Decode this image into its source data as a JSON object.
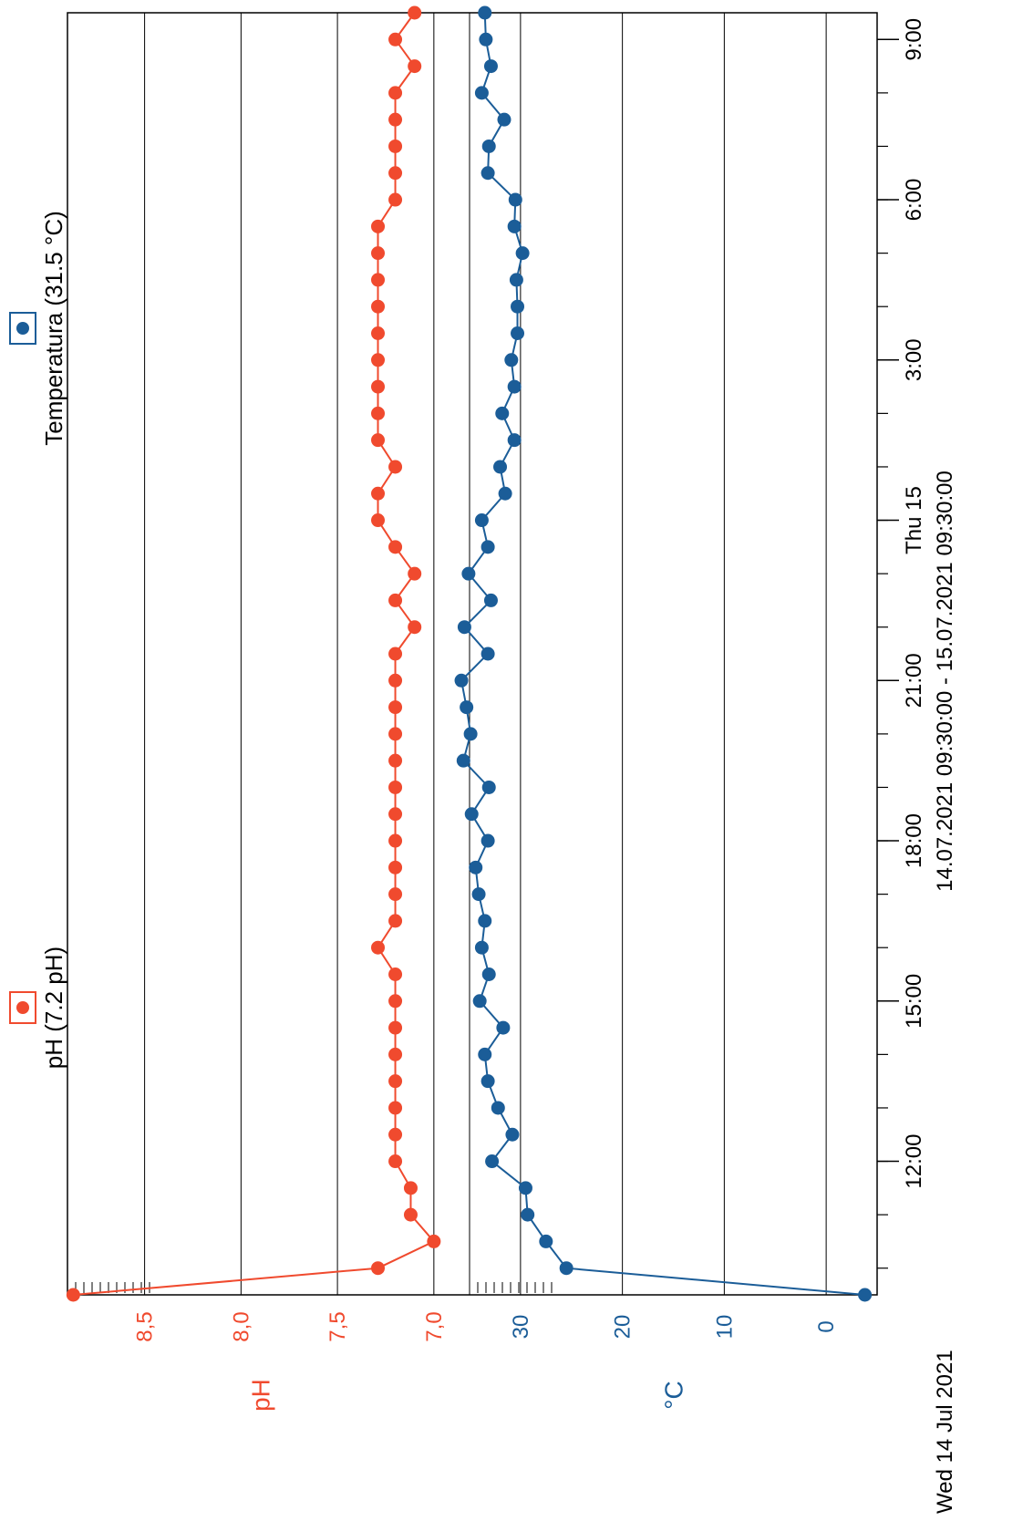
{
  "chart_data": {
    "type": "line",
    "orientation": "rotated 90 degrees counter-clockwise (time axis runs bottom-to-top on the page)",
    "x_axis": {
      "kind": "time",
      "range": [
        "2021-07-14 09:30",
        "2021-07-15 09:30"
      ],
      "major_ticks": [
        {
          "time": "2021-07-14 12:00",
          "label": "12:00"
        },
        {
          "time": "2021-07-14 15:00",
          "label": "15:00"
        },
        {
          "time": "2021-07-14 18:00",
          "label": "18:00"
        },
        {
          "time": "2021-07-14 21:00",
          "label": "21:00"
        },
        {
          "time": "2021-07-15 00:00",
          "label": "Thu 15"
        },
        {
          "time": "2021-07-15 03:00",
          "label": "3:00"
        },
        {
          "time": "2021-07-15 06:00",
          "label": "6:00"
        },
        {
          "time": "2021-07-15 09:00",
          "label": "9:00"
        }
      ],
      "minor_tick_interval": "1 hour",
      "start_label": "Wed 14 Jul 2021",
      "range_label": "14.07.2021 09:30:00 - 15.07.2021 09:30:00"
    },
    "y_axes": [
      {
        "id": "ph",
        "label": "pH",
        "color": "#f04a2e",
        "range": [
          6.9,
          8.9
        ],
        "ticks": [
          {
            "v": 7.0,
            "t": "7,0"
          },
          {
            "v": 7.5,
            "t": "7,5"
          },
          {
            "v": 8.0,
            "t": "8,0"
          },
          {
            "v": 8.5,
            "t": "8,5"
          }
        ]
      },
      {
        "id": "temp",
        "label": "°C",
        "color": "#1b5d98",
        "range": [
          -5,
          35
        ],
        "ticks": [
          {
            "v": 0,
            "t": "0"
          },
          {
            "v": 10,
            "t": "10"
          },
          {
            "v": 20,
            "t": "20"
          },
          {
            "v": 30,
            "t": "30"
          }
        ]
      }
    ],
    "grid": true,
    "legend": {
      "placement": "top (rotated, along left edge of page)",
      "entries": [
        {
          "name": "pH (7.2 pH)",
          "color": "#f04a2e",
          "border": "#f04a2e"
        },
        {
          "name": "Temperatura  (31.5 °C)",
          "color": "#1b5d98",
          "border": "#1b5d98"
        }
      ]
    },
    "series": [
      {
        "name": "pH",
        "axis": "ph",
        "color": "#f04a2e",
        "points": [
          [
            "2021-07-14 09:30",
            8.87
          ],
          [
            "2021-07-14 10:00",
            7.29
          ],
          [
            "2021-07-14 10:30",
            7.0
          ],
          [
            "2021-07-14 11:00",
            7.12
          ],
          [
            "2021-07-14 11:30",
            7.12
          ],
          [
            "2021-07-14 12:00",
            7.2
          ],
          [
            "2021-07-14 12:30",
            7.2
          ],
          [
            "2021-07-14 13:00",
            7.2
          ],
          [
            "2021-07-14 13:30",
            7.2
          ],
          [
            "2021-07-14 14:00",
            7.2
          ],
          [
            "2021-07-14 14:30",
            7.2
          ],
          [
            "2021-07-14 15:00",
            7.2
          ],
          [
            "2021-07-14 15:30",
            7.2
          ],
          [
            "2021-07-14 16:00",
            7.29
          ],
          [
            "2021-07-14 16:30",
            7.2
          ],
          [
            "2021-07-14 17:00",
            7.2
          ],
          [
            "2021-07-14 17:30",
            7.2
          ],
          [
            "2021-07-14 18:00",
            7.2
          ],
          [
            "2021-07-14 18:30",
            7.2
          ],
          [
            "2021-07-14 19:00",
            7.2
          ],
          [
            "2021-07-14 19:30",
            7.2
          ],
          [
            "2021-07-14 20:00",
            7.2
          ],
          [
            "2021-07-14 20:30",
            7.2
          ],
          [
            "2021-07-14 21:00",
            7.2
          ],
          [
            "2021-07-14 21:30",
            7.2
          ],
          [
            "2021-07-14 22:00",
            7.1
          ],
          [
            "2021-07-14 22:30",
            7.2
          ],
          [
            "2021-07-14 23:00",
            7.1
          ],
          [
            "2021-07-14 23:30",
            7.2
          ],
          [
            "2021-07-15 00:00",
            7.29
          ],
          [
            "2021-07-15 00:30",
            7.29
          ],
          [
            "2021-07-15 01:00",
            7.2
          ],
          [
            "2021-07-15 01:30",
            7.29
          ],
          [
            "2021-07-15 02:00",
            7.29
          ],
          [
            "2021-07-15 02:30",
            7.29
          ],
          [
            "2021-07-15 03:00",
            7.29
          ],
          [
            "2021-07-15 03:30",
            7.29
          ],
          [
            "2021-07-15 04:00",
            7.29
          ],
          [
            "2021-07-15 04:30",
            7.29
          ],
          [
            "2021-07-15 05:00",
            7.29
          ],
          [
            "2021-07-15 05:30",
            7.29
          ],
          [
            "2021-07-15 06:00",
            7.2
          ],
          [
            "2021-07-15 06:30",
            7.2
          ],
          [
            "2021-07-15 07:00",
            7.2
          ],
          [
            "2021-07-15 07:30",
            7.2
          ],
          [
            "2021-07-15 08:00",
            7.2
          ],
          [
            "2021-07-15 08:30",
            7.1
          ],
          [
            "2021-07-15 09:00",
            7.2
          ],
          [
            "2021-07-15 09:30",
            7.1
          ]
        ]
      },
      {
        "name": "Temperatura",
        "axis": "temp",
        "color": "#1b5d98",
        "points": [
          [
            "2021-07-14 09:30",
            -3.8
          ],
          [
            "2021-07-14 10:00",
            25.5
          ],
          [
            "2021-07-14 10:30",
            27.5
          ],
          [
            "2021-07-14 11:00",
            29.3
          ],
          [
            "2021-07-14 11:30",
            29.5
          ],
          [
            "2021-07-14 12:00",
            32.8
          ],
          [
            "2021-07-14 12:30",
            30.8
          ],
          [
            "2021-07-14 13:00",
            32.2
          ],
          [
            "2021-07-14 13:30",
            33.2
          ],
          [
            "2021-07-14 14:00",
            33.5
          ],
          [
            "2021-07-14 14:30",
            31.7
          ],
          [
            "2021-07-14 15:00",
            34.0
          ],
          [
            "2021-07-14 15:30",
            33.1
          ],
          [
            "2021-07-14 16:00",
            33.8
          ],
          [
            "2021-07-14 16:30",
            33.5
          ],
          [
            "2021-07-14 17:00",
            34.1
          ],
          [
            "2021-07-14 17:30",
            34.4
          ],
          [
            "2021-07-14 18:00",
            33.2
          ],
          [
            "2021-07-14 18:30",
            34.8
          ],
          [
            "2021-07-14 19:00",
            33.1
          ],
          [
            "2021-07-14 19:30",
            35.6
          ],
          [
            "2021-07-14 20:00",
            34.9
          ],
          [
            "2021-07-14 20:30",
            35.3
          ],
          [
            "2021-07-14 21:00",
            35.8
          ],
          [
            "2021-07-14 21:30",
            33.2
          ],
          [
            "2021-07-14 22:00",
            35.5
          ],
          [
            "2021-07-14 22:30",
            32.9
          ],
          [
            "2021-07-14 23:00",
            35.1
          ],
          [
            "2021-07-14 23:30",
            33.2
          ],
          [
            "2021-07-15 00:00",
            33.8
          ],
          [
            "2021-07-15 00:30",
            31.5
          ],
          [
            "2021-07-15 01:00",
            32.0
          ],
          [
            "2021-07-15 01:30",
            30.6
          ],
          [
            "2021-07-15 02:00",
            31.8
          ],
          [
            "2021-07-15 02:30",
            30.6
          ],
          [
            "2021-07-15 03:00",
            30.9
          ],
          [
            "2021-07-15 03:30",
            30.3
          ],
          [
            "2021-07-15 04:00",
            30.3
          ],
          [
            "2021-07-15 04:30",
            30.4
          ],
          [
            "2021-07-15 05:00",
            29.8
          ],
          [
            "2021-07-15 05:30",
            30.6
          ],
          [
            "2021-07-15 06:00",
            30.5
          ],
          [
            "2021-07-15 06:30",
            33.2
          ],
          [
            "2021-07-15 07:00",
            33.1
          ],
          [
            "2021-07-15 07:30",
            31.6
          ],
          [
            "2021-07-15 08:00",
            33.8
          ],
          [
            "2021-07-15 08:30",
            32.9
          ],
          [
            "2021-07-15 09:00",
            33.4
          ],
          [
            "2021-07-15 09:30",
            33.5
          ]
        ]
      }
    ]
  }
}
